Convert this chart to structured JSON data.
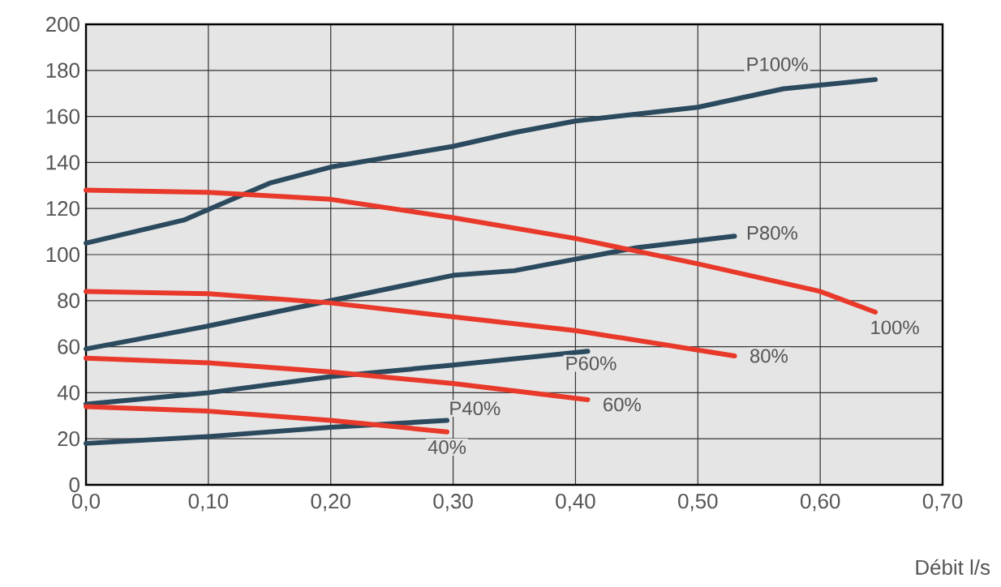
{
  "chart_data": {
    "type": "line",
    "xlabel": "Débit l/s",
    "xlim": [
      0,
      0.7
    ],
    "ylim": [
      0,
      200
    ],
    "xticks": [
      {
        "value": 0,
        "label": "0,0"
      },
      {
        "value": 0.1,
        "label": "0,10"
      },
      {
        "value": 0.2,
        "label": "0,20"
      },
      {
        "value": 0.3,
        "label": "0,30"
      },
      {
        "value": 0.4,
        "label": "0,40"
      },
      {
        "value": 0.5,
        "label": "0,50"
      },
      {
        "value": 0.6,
        "label": "0,60"
      },
      {
        "value": 0.7,
        "label": "0,70"
      }
    ],
    "yticks": [
      0,
      20,
      40,
      60,
      80,
      100,
      120,
      140,
      160,
      180,
      200
    ],
    "grid": true,
    "legend": false,
    "marker": "none",
    "line_style": "solid",
    "series": [
      {
        "name": "P100%",
        "color": "#2b4a5e",
        "x": [
          0,
          0.08,
          0.15,
          0.2,
          0.3,
          0.35,
          0.4,
          0.5,
          0.57,
          0.645
        ],
        "values": [
          105,
          115,
          131,
          138,
          147,
          153,
          158,
          164,
          172,
          176
        ]
      },
      {
        "name": "P80%",
        "color": "#2b4a5e",
        "x": [
          0,
          0.1,
          0.2,
          0.3,
          0.35,
          0.4,
          0.45,
          0.53
        ],
        "values": [
          59,
          69,
          80,
          91,
          93,
          98,
          103,
          108
        ]
      },
      {
        "name": "P60%",
        "color": "#2b4a5e",
        "x": [
          0,
          0.1,
          0.2,
          0.3,
          0.41
        ],
        "values": [
          35,
          40,
          47,
          52,
          58
        ]
      },
      {
        "name": "P40%",
        "color": "#2b4a5e",
        "x": [
          0,
          0.1,
          0.2,
          0.295
        ],
        "values": [
          18,
          21,
          25,
          28
        ]
      },
      {
        "name": "100%",
        "color": "#e8392a",
        "x": [
          0,
          0.1,
          0.2,
          0.3,
          0.4,
          0.5,
          0.6,
          0.645
        ],
        "values": [
          128,
          127,
          124,
          116,
          107,
          96,
          84,
          75
        ]
      },
      {
        "name": "80%",
        "color": "#e8392a",
        "x": [
          0,
          0.1,
          0.2,
          0.3,
          0.4,
          0.53
        ],
        "values": [
          84,
          83,
          79,
          73,
          67,
          56
        ]
      },
      {
        "name": "60%",
        "color": "#e8392a",
        "x": [
          0,
          0.1,
          0.2,
          0.3,
          0.41
        ],
        "values": [
          55,
          53,
          49,
          44,
          37
        ]
      },
      {
        "name": "40%",
        "color": "#e8392a",
        "x": [
          0,
          0.1,
          0.2,
          0.295
        ],
        "values": [
          34,
          32,
          28,
          23
        ]
      }
    ]
  }
}
